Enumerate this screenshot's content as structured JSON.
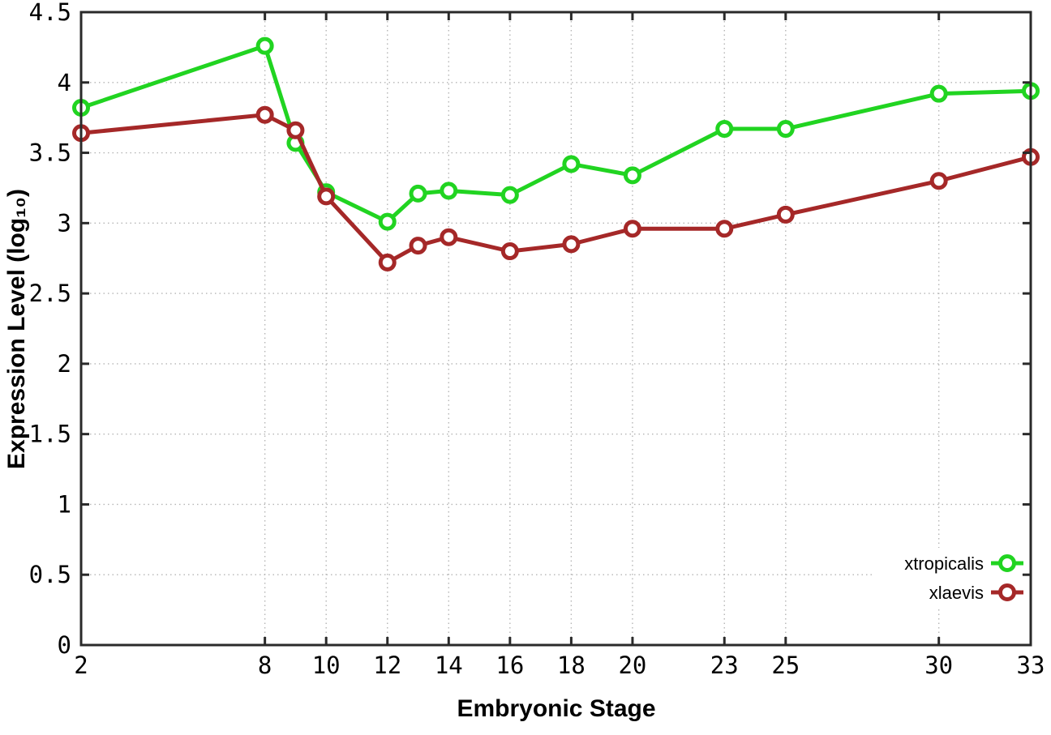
{
  "chart_data": {
    "type": "line",
    "title": "",
    "xlabel": "Embryonic Stage",
    "ylabel": "Expression Level (log₁₀)",
    "xlim": [
      2,
      33
    ],
    "ylim": [
      0,
      4.5
    ],
    "xticks": [
      2,
      8,
      10,
      12,
      14,
      16,
      18,
      20,
      23,
      25,
      30,
      33
    ],
    "yticks": [
      0,
      0.5,
      1,
      1.5,
      2,
      2.5,
      3,
      3.5,
      4,
      4.5
    ],
    "ytick_labels": [
      "0",
      "0.5",
      "1",
      "1.5",
      "2",
      "2.5",
      "3",
      "3.5",
      "4",
      "4.5"
    ],
    "grid": true,
    "grid_style": "dotted",
    "legend_position": "bottom-right",
    "x": [
      2,
      8,
      9,
      10,
      12,
      13,
      14,
      16,
      18,
      20,
      23,
      25,
      30,
      33
    ],
    "series": [
      {
        "name": "xtropicalis",
        "color": "#21d421",
        "marker": "open-circle",
        "values": [
          3.82,
          4.26,
          3.57,
          3.22,
          3.01,
          3.21,
          3.23,
          3.2,
          3.42,
          3.34,
          3.67,
          3.67,
          3.92,
          3.94
        ]
      },
      {
        "name": "xlaevis",
        "color": "#a52828",
        "marker": "open-circle",
        "values": [
          3.64,
          3.77,
          3.66,
          3.19,
          2.72,
          2.84,
          2.9,
          2.8,
          2.85,
          2.96,
          2.96,
          3.06,
          3.3,
          3.47
        ]
      }
    ],
    "style_colors": {
      "grid": "#b5b5b5",
      "axis": "#2a2a2a",
      "background": "#ffffff",
      "marker_fill": "#ffffff"
    }
  }
}
